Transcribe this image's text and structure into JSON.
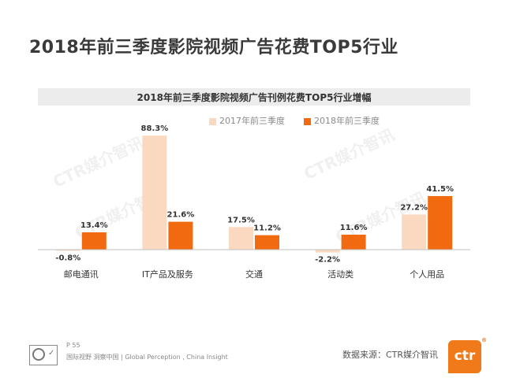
{
  "page": {
    "title": "2018年前三季度影院视频广告花费TOP5行业",
    "page_number": "P 55",
    "tagline": "国际视野 洞察中国 | Global Perception , China Insight",
    "source": "数据来源：CTR媒介智讯",
    "logo_text": "ctr",
    "logo_mark": "®",
    "watermark": "CTR媒介智讯"
  },
  "colors": {
    "series_2017": "#fbd8c0",
    "series_2018": "#f26a10",
    "header_bg": "#ececec",
    "axis": "#bfbfbf"
  },
  "chart_data": {
    "type": "bar",
    "title": "2018年前三季度影院视频广告刊例花费TOP5行业增幅",
    "categories": [
      "邮电通讯",
      "IT产品及服务",
      "交通",
      "活动类",
      "个人用品"
    ],
    "series": [
      {
        "name": "2017年前三季度",
        "values": [
          -0.8,
          88.3,
          17.5,
          -2.2,
          27.2
        ],
        "labels": [
          "-0.8%",
          "88.3%",
          "17.5%",
          "-2.2%",
          "27.2%"
        ]
      },
      {
        "name": "2018年前三季度",
        "values": [
          13.4,
          21.6,
          11.2,
          11.6,
          41.5
        ],
        "labels": [
          "13.4%",
          "21.6%",
          "11.2%",
          "11.6%",
          "41.5%"
        ]
      }
    ],
    "legend_position": "top-right",
    "grid": false
  }
}
